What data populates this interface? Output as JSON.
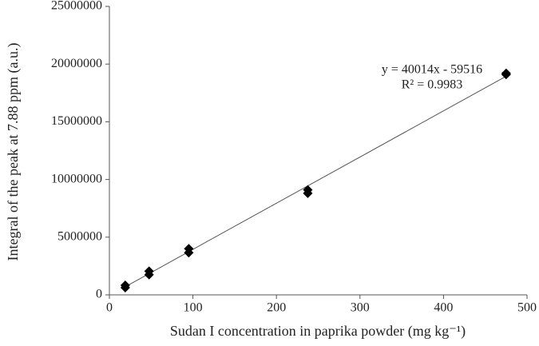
{
  "chart_data": {
    "type": "scatter",
    "x_label": "Sudan I concentration in paprika powder (mg kg⁻¹)",
    "y_label": "Integral of the peak at 7.88 ppm (a.u.)",
    "x": [
      19,
      19,
      47.5,
      47.5,
      95,
      95,
      237.5,
      237.5,
      475,
      475
    ],
    "values": [
      620000,
      830000,
      1750000,
      2050000,
      3650000,
      4000000,
      8800000,
      9100000,
      19100000,
      19200000
    ],
    "color": "#000000",
    "xlim": [
      0,
      500
    ],
    "xticks": [
      0,
      100,
      200,
      300,
      400,
      500
    ],
    "ylim": [
      0,
      25000000
    ],
    "yticks": [
      0,
      5000000,
      10000000,
      15000000,
      20000000,
      25000000
    ],
    "grid": false,
    "trendline": {
      "slope": 40014,
      "intercept": -59516,
      "equation": "y = 40014x - 59516",
      "r2": "R² = 0.9983"
    }
  }
}
